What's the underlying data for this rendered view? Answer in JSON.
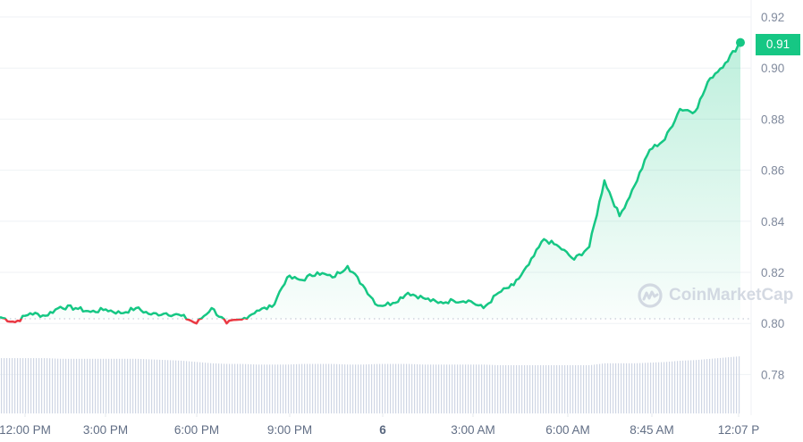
{
  "chart_data": {
    "type": "line",
    "title": "",
    "xlabel": "",
    "ylabel": "",
    "ylim": [
      0.765,
      0.925
    ],
    "y_ticks": [
      "0.92",
      "0.90",
      "0.88",
      "0.86",
      "0.84",
      "0.82",
      "0.80",
      "0.78"
    ],
    "x_ticks": [
      "12:00 PM",
      "3:00 PM",
      "6:00 PM",
      "9:00 PM",
      "6",
      "3:00 AM",
      "6:00 AM",
      "8:45 AM",
      "12:07 P"
    ],
    "baseline": 0.8018,
    "current_price": "0.91",
    "grid": true,
    "colors": {
      "up": "#16c784",
      "down": "#ea3943",
      "volume": "#cfd6e4",
      "axis_text": "#808a9d"
    },
    "series": [
      {
        "name": "Price",
        "x": [
          "12:00 PM",
          "12:30 PM",
          "1:00 PM",
          "1:30 PM",
          "2:00 PM",
          "2:30 PM",
          "3:00 PM",
          "3:30 PM",
          "4:00 PM",
          "4:30 PM",
          "5:00 PM",
          "5:30 PM",
          "6:00 PM",
          "6:30 PM",
          "7:00 PM",
          "7:30 PM",
          "8:00 PM",
          "8:30 PM",
          "9:00 PM",
          "9:30 PM",
          "10:00 PM",
          "10:30 PM",
          "11:00 PM",
          "11:30 PM",
          "12:00 AM",
          "12:30 AM",
          "1:00 AM",
          "1:30 AM",
          "2:00 AM",
          "2:30 AM",
          "3:00 AM",
          "3:30 AM",
          "4:00 AM",
          "4:30 AM",
          "5:00 AM",
          "5:30 AM",
          "6:00 AM",
          "6:30 AM",
          "7:00 AM",
          "7:30 AM",
          "8:00 AM",
          "8:30 AM",
          "9:00 AM",
          "9:30 AM",
          "10:00 AM",
          "10:30 AM",
          "11:00 AM",
          "11:30 AM",
          "12:00 PM",
          "12:07 PM"
        ],
        "values": [
          0.8025,
          0.8005,
          0.804,
          0.803,
          0.8065,
          0.806,
          0.8045,
          0.8055,
          0.804,
          0.806,
          0.8035,
          0.804,
          0.803,
          0.8,
          0.806,
          0.8,
          0.8015,
          0.805,
          0.8065,
          0.818,
          0.817,
          0.82,
          0.818,
          0.8225,
          0.815,
          0.807,
          0.808,
          0.812,
          0.81,
          0.808,
          0.809,
          0.809,
          0.806,
          0.812,
          0.815,
          0.823,
          0.833,
          0.83,
          0.825,
          0.83,
          0.856,
          0.842,
          0.854,
          0.868,
          0.872,
          0.884,
          0.883,
          0.896,
          0.902,
          0.91
        ]
      },
      {
        "name": "Volume (relative)",
        "values": [
          0.86,
          0.86,
          0.86,
          0.86,
          0.85,
          0.85,
          0.85,
          0.85,
          0.85,
          0.85,
          0.84,
          0.83,
          0.82,
          0.8,
          0.78,
          0.77,
          0.77,
          0.76,
          0.76,
          0.76,
          0.77,
          0.77,
          0.77,
          0.76,
          0.76,
          0.77,
          0.77,
          0.77,
          0.76,
          0.76,
          0.76,
          0.76,
          0.76,
          0.75,
          0.75,
          0.75,
          0.75,
          0.75,
          0.75,
          0.75,
          0.78,
          0.78,
          0.78,
          0.79,
          0.8,
          0.82,
          0.83,
          0.85,
          0.87,
          0.89
        ]
      }
    ]
  },
  "axis": {
    "y": [
      "0.92",
      "0.90",
      "0.88",
      "0.86",
      "0.84",
      "0.82",
      "0.80",
      "0.78"
    ],
    "x": [
      "12:00 PM",
      "3:00 PM",
      "6:00 PM",
      "9:00 PM",
      "6",
      "3:00 AM",
      "6:00 AM",
      "8:45 AM",
      "12:07 P"
    ]
  },
  "price_badge": "0.91",
  "watermark": {
    "text": "CoinMarketCap",
    "icon": "coinmarketcap-logo-icon"
  }
}
